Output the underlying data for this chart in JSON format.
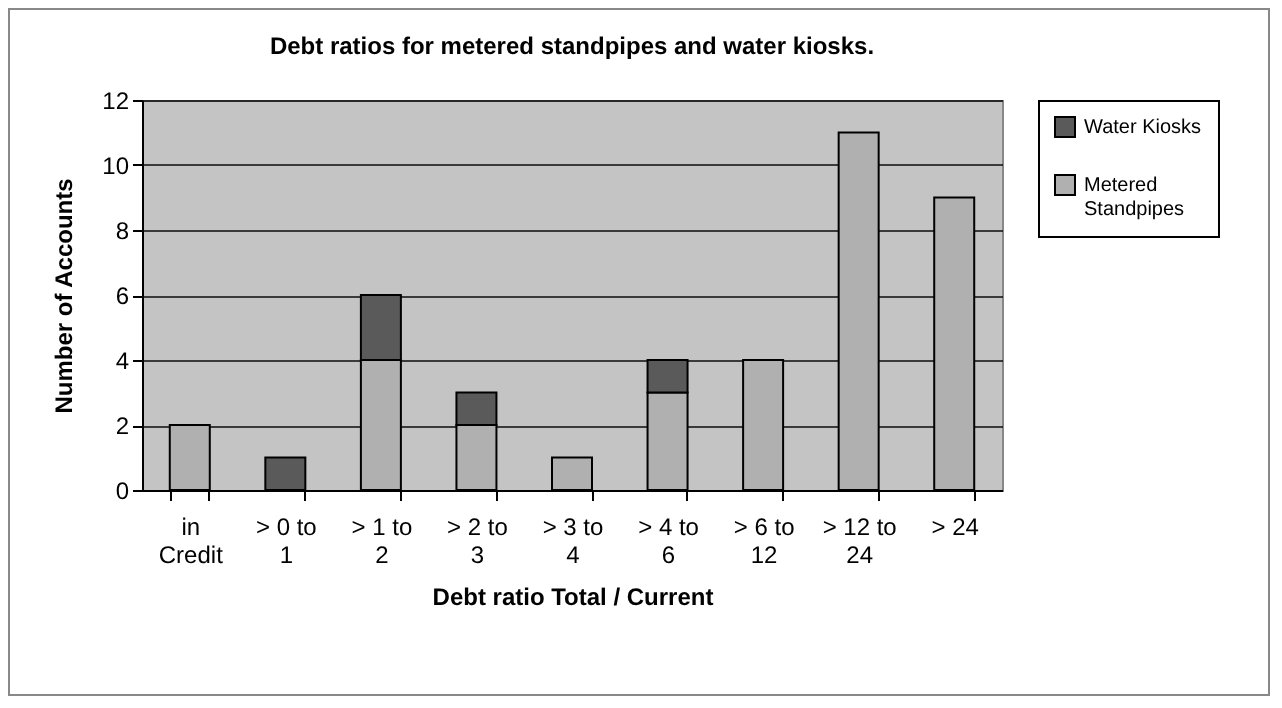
{
  "chart_data": {
    "type": "bar",
    "title": "Debt ratios for metered standpipes and water kiosks.",
    "xlabel": "Debt ratio Total / Current",
    "ylabel": "Number of Accounts",
    "categories": [
      "in Credit",
      "> 0 to 1",
      "> 1 to 2",
      "> 2 to 3",
      "> 3 to 4",
      "> 4 to 6",
      "> 6 to 12",
      "> 12 to 24",
      "> 24"
    ],
    "stacked": true,
    "series": [
      {
        "name": "Metered Standpipes",
        "color": "#b0b0b0",
        "values": [
          2,
          0,
          4,
          2,
          1,
          3,
          4,
          11,
          9
        ]
      },
      {
        "name": "Water Kiosks",
        "color": "#5a5a5a",
        "values": [
          0,
          1,
          2,
          1,
          0,
          1,
          0,
          0,
          0
        ]
      }
    ],
    "ylim": [
      0,
      12
    ],
    "yticks": [
      0,
      2,
      4,
      6,
      8,
      10,
      12
    ],
    "grid": "y",
    "legend": "right"
  }
}
